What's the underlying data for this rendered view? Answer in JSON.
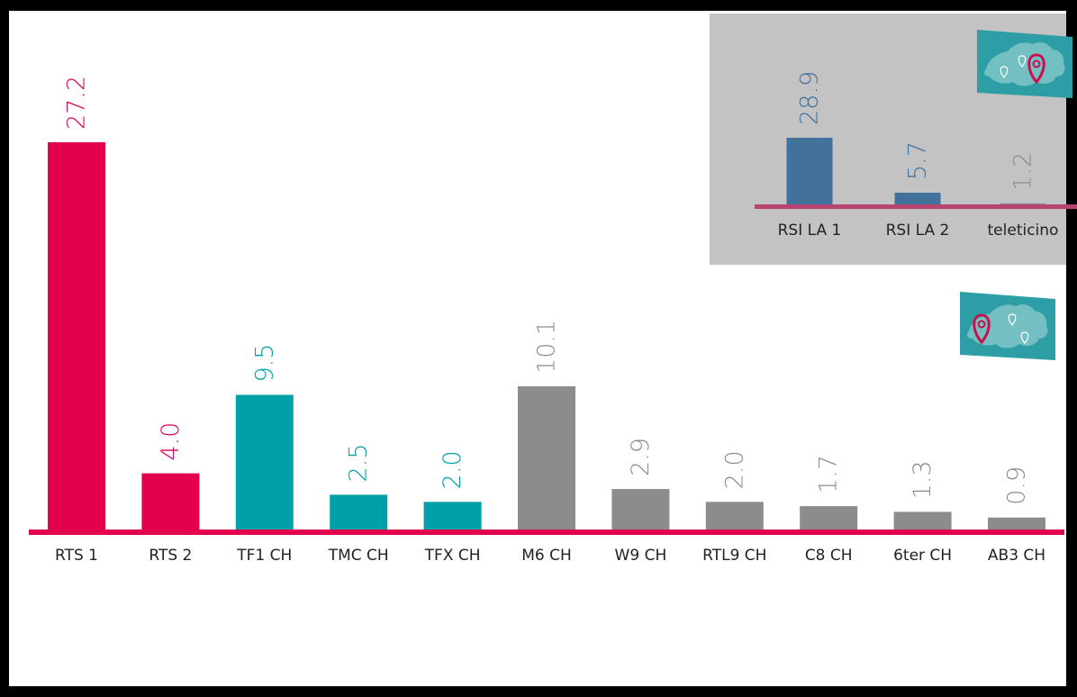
{
  "chart_data": [
    {
      "type": "bar",
      "categories": [
        "RTS 1",
        "RTS 2",
        "TF1 CH",
        "TMC CH",
        "TFX CH",
        "M6 CH",
        "W9 CH",
        "RTL9 CH",
        "C8 CH",
        "6ter CH",
        "AB3 CH"
      ],
      "values": [
        27.2,
        4.0,
        9.5,
        2.5,
        2.0,
        10.1,
        2.9,
        2.0,
        1.7,
        1.3,
        0.9
      ],
      "labels": [
        "27.2",
        "4.0",
        "9.5",
        "2.5",
        "2.0",
        "10.1",
        "2.9",
        "2.0",
        "1.7",
        "1.3",
        "0.9"
      ],
      "colors": [
        "#e3004f",
        "#e3004f",
        "#00a0a8",
        "#00a0a8",
        "#00a0a8",
        "#8c8c8c",
        "#8c8c8c",
        "#8c8c8c",
        "#8c8c8c",
        "#8c8c8c",
        "#8c8c8c"
      ],
      "title": "",
      "xlabel": "",
      "ylabel": "",
      "grid": false,
      "legend": "none",
      "map_icon": "switzerland-map-icon",
      "highlighted_region": "romandie"
    },
    {
      "type": "bar",
      "categories": [
        "RSI LA 1",
        "RSI LA 2",
        "teleticino"
      ],
      "values": [
        28.9,
        5.7,
        1.2
      ],
      "labels": [
        "28.9",
        "5.7",
        "1.2"
      ],
      "colors": [
        "#42719b",
        "#42719b",
        "#8c8c8c"
      ],
      "title": "",
      "xlabel": "",
      "ylabel": "",
      "grid": false,
      "legend": "none",
      "map_icon": "switzerland-map-icon",
      "highlighted_region": "ticino"
    }
  ],
  "colors": {
    "baseline": "#e3004f",
    "inset_baseline": "#b84270",
    "inset_background": "#c3c3c3",
    "map_tile": "#2d9ea5",
    "map_land": "#8cc9cc",
    "pin": "#c8104f",
    "category_text": "#222222"
  }
}
